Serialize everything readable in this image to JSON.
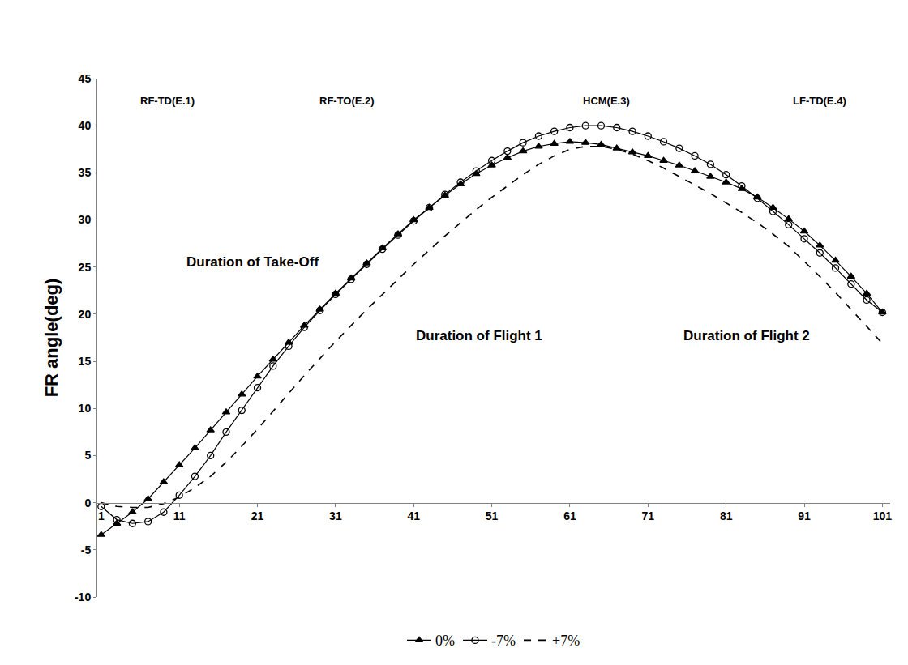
{
  "chart_data": {
    "type": "line",
    "y_title": "FR angle(deg)",
    "x": [
      1,
      3,
      5,
      7,
      9,
      11,
      13,
      15,
      17,
      19,
      21,
      23,
      25,
      27,
      29,
      31,
      33,
      35,
      37,
      39,
      41,
      43,
      45,
      47,
      49,
      51,
      53,
      55,
      57,
      59,
      61,
      63,
      65,
      67,
      69,
      71,
      73,
      75,
      77,
      79,
      81,
      83,
      85,
      87,
      89,
      91,
      93,
      95,
      97,
      99,
      101
    ],
    "series": [
      {
        "name": "0%",
        "color": "#000000",
        "marker": "triangle",
        "line_style": "solid",
        "values": [
          -3.4,
          -2.2,
          -1.0,
          0.4,
          2.2,
          4.0,
          5.8,
          7.7,
          9.6,
          11.5,
          13.4,
          15.2,
          17.0,
          18.8,
          20.5,
          22.2,
          23.8,
          25.4,
          27.0,
          28.5,
          30.0,
          31.3,
          32.6,
          33.8,
          34.9,
          35.8,
          36.6,
          37.3,
          37.8,
          38.1,
          38.3,
          38.2,
          38.0,
          37.6,
          37.2,
          36.8,
          36.3,
          35.8,
          35.2,
          34.6,
          34.0,
          33.3,
          32.4,
          31.3,
          30.1,
          28.8,
          27.3,
          25.7,
          24.0,
          22.2,
          20.2
        ]
      },
      {
        "name": "-7%",
        "color": "#000000",
        "marker": "circle-open",
        "line_style": "solid",
        "values": [
          -0.4,
          -1.8,
          -2.2,
          -2.0,
          -1.0,
          0.8,
          2.8,
          5.0,
          7.5,
          9.8,
          12.2,
          14.5,
          16.6,
          18.6,
          20.4,
          22.1,
          23.7,
          25.3,
          26.9,
          28.4,
          29.9,
          31.3,
          32.7,
          34.0,
          35.2,
          36.3,
          37.3,
          38.2,
          38.9,
          39.4,
          39.8,
          40.0,
          40.0,
          39.8,
          39.4,
          38.9,
          38.3,
          37.6,
          36.8,
          35.9,
          34.8,
          33.6,
          32.3,
          30.9,
          29.5,
          28.0,
          26.5,
          24.9,
          23.2,
          21.5,
          20.2
        ]
      },
      {
        "name": "+7%",
        "color": "#000000",
        "marker": "none",
        "line_style": "dash",
        "values": [
          0,
          -0.4,
          -0.5,
          -0.5,
          -0.1,
          0.6,
          1.6,
          2.8,
          4.3,
          6.0,
          7.8,
          9.7,
          11.6,
          13.5,
          15.3,
          17.1,
          18.8,
          20.5,
          22.1,
          23.7,
          25.3,
          26.8,
          28.3,
          29.7,
          31.1,
          32.4,
          33.6,
          34.8,
          35.9,
          36.8,
          37.5,
          37.8,
          37.8,
          37.5,
          37.0,
          36.3,
          35.5,
          34.6,
          33.7,
          32.8,
          31.8,
          30.8,
          29.7,
          28.5,
          27.2,
          25.6,
          24.0,
          22.3,
          20.5,
          18.7,
          16.9
        ]
      }
    ],
    "annotations": [
      {
        "text": "RF-TD(E.1)",
        "x": 9.5,
        "y": 42.6
      },
      {
        "text": "RF-TO(E.2)",
        "x": 32.5,
        "y": 42.6
      },
      {
        "text": "HCM(E.3)",
        "x": 65.7,
        "y": 42.6
      },
      {
        "text": "LF-TD(E.4)",
        "x": 93,
        "y": 42.6
      },
      {
        "text": "Duration of Take-Off",
        "x": 20.4,
        "y": 25.5
      },
      {
        "text": "Duration of Flight 1",
        "x": 49.4,
        "y": 17.7
      },
      {
        "text": "Duration of Flight 2",
        "x": 83.6,
        "y": 17.7
      }
    ],
    "xlim": [
      0.5,
      102
    ],
    "xticks": [
      1,
      11,
      21,
      31,
      41,
      51,
      61,
      71,
      81,
      91,
      101
    ],
    "ylim": [
      -10,
      45
    ],
    "yticks": [
      -10,
      -5,
      0,
      5,
      10,
      15,
      20,
      25,
      30,
      35,
      40,
      45
    ],
    "grid": false,
    "legend": "bottom"
  }
}
